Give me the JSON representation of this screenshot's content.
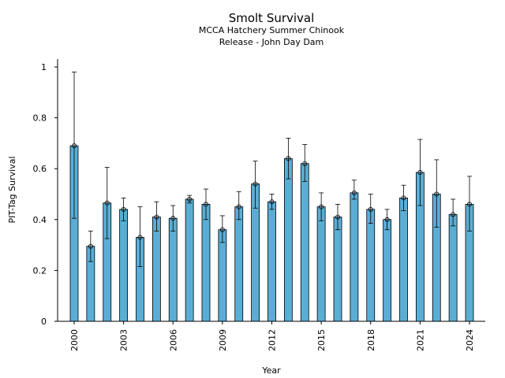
{
  "chart_data": {
    "type": "bar",
    "title": "Smolt Survival",
    "subtitle_lines": [
      "MCCA Hatchery Summer Chinook",
      "Release - John Day Dam"
    ],
    "xlabel": "Year",
    "ylabel": "PIT-Tag Survival",
    "ylim": [
      0,
      1.02
    ],
    "yticks": [
      0,
      0.2,
      0.4,
      0.6,
      0.8,
      1
    ],
    "ytick_labels": [
      "0",
      "0.2",
      "0.4",
      "0.6",
      "0.8",
      "1"
    ],
    "xtick_labels": [
      "2000",
      "2003",
      "2006",
      "2009",
      "2012",
      "2015",
      "2018",
      "2021",
      "2024"
    ],
    "grid": false,
    "bar_color": "#5aaed6",
    "categories": [
      2000,
      2001,
      2002,
      2003,
      2004,
      2005,
      2006,
      2007,
      2008,
      2009,
      2010,
      2011,
      2012,
      2013,
      2014,
      2015,
      2016,
      2017,
      2018,
      2019,
      2020,
      2021,
      2022,
      2023,
      2024
    ],
    "values": [
      0.69,
      0.295,
      0.465,
      0.44,
      0.33,
      0.41,
      0.405,
      0.48,
      0.46,
      0.36,
      0.45,
      0.54,
      0.47,
      0.64,
      0.62,
      0.45,
      0.41,
      0.505,
      0.44,
      0.4,
      0.485,
      0.585,
      0.5,
      0.42,
      0.46
    ],
    "error_low": [
      0.405,
      0.235,
      0.325,
      0.395,
      0.215,
      0.355,
      0.355,
      0.465,
      0.4,
      0.31,
      0.4,
      0.445,
      0.44,
      0.56,
      0.55,
      0.395,
      0.36,
      0.48,
      0.385,
      0.36,
      0.435,
      0.455,
      0.37,
      0.375,
      0.355
    ],
    "error_high": [
      0.98,
      0.355,
      0.605,
      0.485,
      0.45,
      0.47,
      0.455,
      0.495,
      0.52,
      0.415,
      0.51,
      0.63,
      0.5,
      0.72,
      0.695,
      0.505,
      0.46,
      0.555,
      0.5,
      0.44,
      0.535,
      0.715,
      0.635,
      0.48,
      0.57
    ]
  }
}
